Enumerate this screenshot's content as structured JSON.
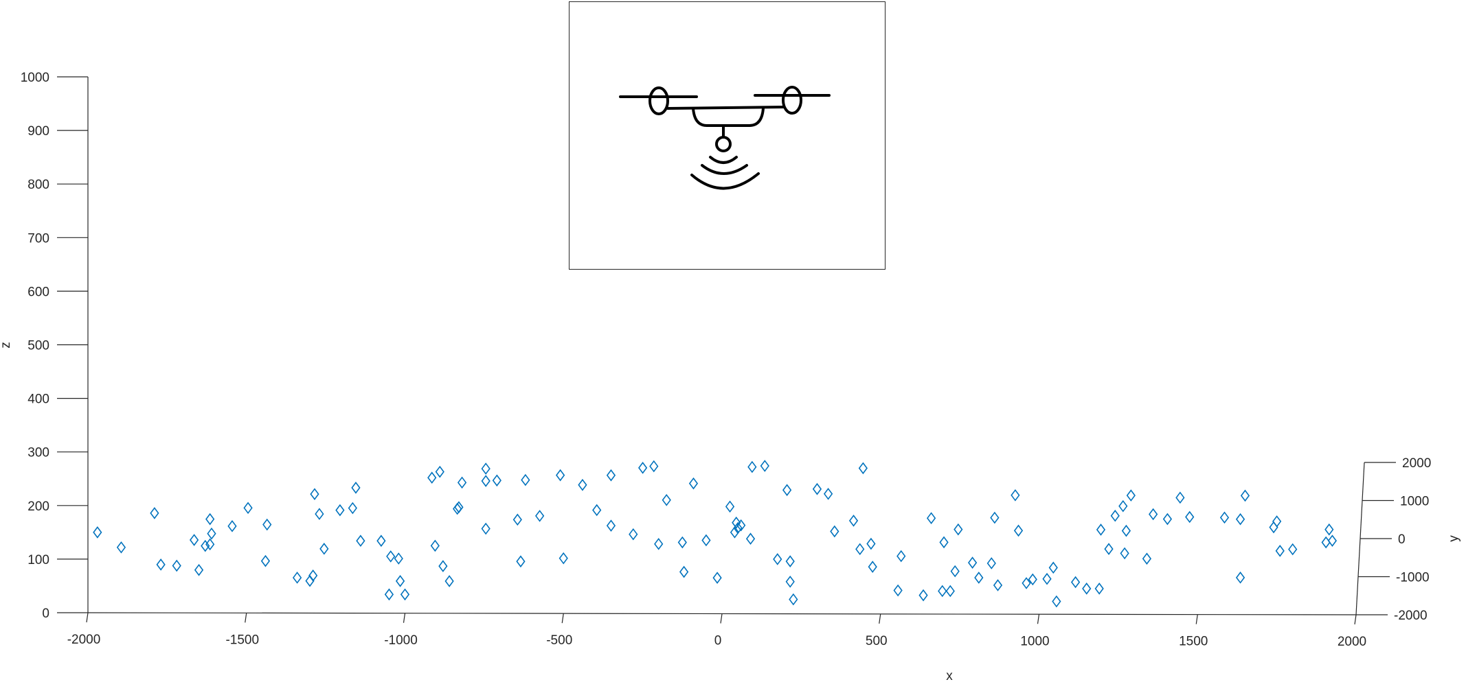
{
  "chart_data": {
    "type": "scatter",
    "marker": "diamond",
    "colors": {
      "marker": "#0072BD",
      "axis": "#262626"
    },
    "xlabel": "x",
    "ylabel": "y",
    "zlabel": "z",
    "xlim": [
      -2000,
      2000
    ],
    "ylim": [
      -2000,
      2000
    ],
    "zlim": [
      0,
      1000
    ],
    "x_ticks": [
      "-2000",
      "-1500",
      "-1000",
      "-500",
      "0",
      "500",
      "1000",
      "1500",
      "2000"
    ],
    "y_ticks": [
      "-2000",
      "-1000",
      "0",
      "1000",
      "2000"
    ],
    "z_ticks": [
      "0",
      "100",
      "200",
      "300",
      "400",
      "500",
      "600",
      "700",
      "800",
      "900",
      "1000"
    ],
    "inset": {
      "icon": "drone-icon"
    },
    "points": [
      {
        "x": -1970,
        "z": 150
      },
      {
        "x": -1895,
        "z": 122
      },
      {
        "x": -1790,
        "z": 186
      },
      {
        "x": -1770,
        "z": 90
      },
      {
        "x": -1720,
        "z": 88
      },
      {
        "x": -1665,
        "z": 136
      },
      {
        "x": -1650,
        "z": 80
      },
      {
        "x": -1630,
        "z": 125
      },
      {
        "x": -1615,
        "z": 175
      },
      {
        "x": -1610,
        "z": 148
      },
      {
        "x": -1615,
        "z": 128
      },
      {
        "x": -1545,
        "z": 162
      },
      {
        "x": -1495,
        "z": 196
      },
      {
        "x": -1440,
        "z": 97
      },
      {
        "x": -1435,
        "z": 165
      },
      {
        "x": -1340,
        "z": 66
      },
      {
        "x": -1300,
        "z": 60
      },
      {
        "x": -1290,
        "z": 70
      },
      {
        "x": -1285,
        "z": 222
      },
      {
        "x": -1270,
        "z": 185
      },
      {
        "x": -1255,
        "z": 120
      },
      {
        "x": -1205,
        "z": 192
      },
      {
        "x": -1165,
        "z": 196
      },
      {
        "x": -1155,
        "z": 234
      },
      {
        "x": -1140,
        "z": 135
      },
      {
        "x": -1075,
        "z": 135
      },
      {
        "x": -1050,
        "z": 35
      },
      {
        "x": -1045,
        "z": 106
      },
      {
        "x": -1020,
        "z": 102
      },
      {
        "x": -1015,
        "z": 60
      },
      {
        "x": -1000,
        "z": 35
      },
      {
        "x": -915,
        "z": 253
      },
      {
        "x": -905,
        "z": 126
      },
      {
        "x": -890,
        "z": 264
      },
      {
        "x": -880,
        "z": 88
      },
      {
        "x": -860,
        "z": 60
      },
      {
        "x": -835,
        "z": 195
      },
      {
        "x": -830,
        "z": 198
      },
      {
        "x": -820,
        "z": 244
      },
      {
        "x": -745,
        "z": 270
      },
      {
        "x": -745,
        "z": 247
      },
      {
        "x": -745,
        "z": 158
      },
      {
        "x": -710,
        "z": 248
      },
      {
        "x": -645,
        "z": 175
      },
      {
        "x": -635,
        "z": 97
      },
      {
        "x": -620,
        "z": 249
      },
      {
        "x": -575,
        "z": 182
      },
      {
        "x": -510,
        "z": 258
      },
      {
        "x": -500,
        "z": 103
      },
      {
        "x": -440,
        "z": 240
      },
      {
        "x": -395,
        "z": 193
      },
      {
        "x": -350,
        "z": 258
      },
      {
        "x": -350,
        "z": 164
      },
      {
        "x": -280,
        "z": 148
      },
      {
        "x": -250,
        "z": 272
      },
      {
        "x": -215,
        "z": 275
      },
      {
        "x": -200,
        "z": 130
      },
      {
        "x": -175,
        "z": 212
      },
      {
        "x": -125,
        "z": 133
      },
      {
        "x": -120,
        "z": 78
      },
      {
        "x": -90,
        "z": 243
      },
      {
        "x": -50,
        "z": 137
      },
      {
        "x": -15,
        "z": 67
      },
      {
        "x": 25,
        "z": 200
      },
      {
        "x": 40,
        "z": 152
      },
      {
        "x": 45,
        "z": 170
      },
      {
        "x": 50,
        "z": 160
      },
      {
        "x": 60,
        "z": 165
      },
      {
        "x": 90,
        "z": 140
      },
      {
        "x": 95,
        "z": 274
      },
      {
        "x": 135,
        "z": 276
      },
      {
        "x": 175,
        "z": 102
      },
      {
        "x": 205,
        "z": 231
      },
      {
        "x": 215,
        "z": 98
      },
      {
        "x": 215,
        "z": 60
      },
      {
        "x": 225,
        "z": 27
      },
      {
        "x": 300,
        "z": 233
      },
      {
        "x": 335,
        "z": 224
      },
      {
        "x": 355,
        "z": 154
      },
      {
        "x": 415,
        "z": 174
      },
      {
        "x": 435,
        "z": 121
      },
      {
        "x": 445,
        "z": 272
      },
      {
        "x": 470,
        "z": 131
      },
      {
        "x": 475,
        "z": 88
      },
      {
        "x": 555,
        "z": 44
      },
      {
        "x": 565,
        "z": 108
      },
      {
        "x": 635,
        "z": 35
      },
      {
        "x": 660,
        "z": 179
      },
      {
        "x": 695,
        "z": 43
      },
      {
        "x": 700,
        "z": 134
      },
      {
        "x": 720,
        "z": 43
      },
      {
        "x": 735,
        "z": 80
      },
      {
        "x": 745,
        "z": 158
      },
      {
        "x": 790,
        "z": 96
      },
      {
        "x": 810,
        "z": 68
      },
      {
        "x": 850,
        "z": 95
      },
      {
        "x": 860,
        "z": 180
      },
      {
        "x": 870,
        "z": 54
      },
      {
        "x": 925,
        "z": 222
      },
      {
        "x": 935,
        "z": 156
      },
      {
        "x": 960,
        "z": 58
      },
      {
        "x": 980,
        "z": 65
      },
      {
        "x": 1025,
        "z": 66
      },
      {
        "x": 1045,
        "z": 87
      },
      {
        "x": 1055,
        "z": 24
      },
      {
        "x": 1115,
        "z": 60
      },
      {
        "x": 1150,
        "z": 48
      },
      {
        "x": 1190,
        "z": 48
      },
      {
        "x": 1195,
        "z": 158
      },
      {
        "x": 1220,
        "z": 122
      },
      {
        "x": 1240,
        "z": 184
      },
      {
        "x": 1265,
        "z": 202
      },
      {
        "x": 1270,
        "z": 114
      },
      {
        "x": 1275,
        "z": 156
      },
      {
        "x": 1290,
        "z": 222
      },
      {
        "x": 1340,
        "z": 104
      },
      {
        "x": 1360,
        "z": 187
      },
      {
        "x": 1405,
        "z": 178
      },
      {
        "x": 1445,
        "z": 218
      },
      {
        "x": 1475,
        "z": 182
      },
      {
        "x": 1585,
        "z": 181
      },
      {
        "x": 1635,
        "z": 178
      },
      {
        "x": 1635,
        "z": 69
      },
      {
        "x": 1650,
        "z": 222
      },
      {
        "x": 1740,
        "z": 163
      },
      {
        "x": 1750,
        "z": 174
      },
      {
        "x": 1760,
        "z": 119
      },
      {
        "x": 1800,
        "z": 122
      },
      {
        "x": 1905,
        "z": 135
      },
      {
        "x": 1915,
        "z": 159
      },
      {
        "x": 1925,
        "z": 138
      }
    ]
  }
}
